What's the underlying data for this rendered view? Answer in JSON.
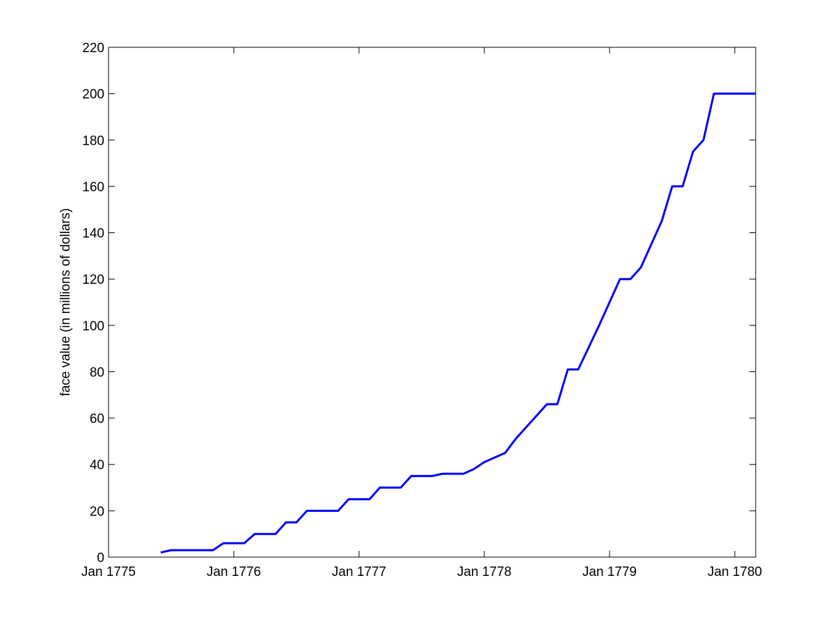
{
  "chart_data": {
    "type": "line",
    "title": "",
    "xlabel": "",
    "ylabel": "face value (in millions of dollars)",
    "x_tick_labels": [
      "Jan 1775",
      "Jan 1776",
      "Jan 1777",
      "Jan 1778",
      "Jan 1779",
      "Jan 1780"
    ],
    "y_tick_labels": [
      "0",
      "20",
      "40",
      "60",
      "80",
      "100",
      "120",
      "140",
      "160",
      "180",
      "200",
      "220"
    ],
    "xlim": [
      "1775-01",
      "1780-03"
    ],
    "ylim": [
      0,
      220
    ],
    "grid": false,
    "legend": "none",
    "series": [
      {
        "color": "#0000ff",
        "points": [
          [
            "1775-06",
            2
          ],
          [
            "1775-07",
            3
          ],
          [
            "1775-11",
            3
          ],
          [
            "1775-12",
            6
          ],
          [
            "1776-02",
            6
          ],
          [
            "1776-03",
            10
          ],
          [
            "1776-05",
            10
          ],
          [
            "1776-06",
            15
          ],
          [
            "1776-07",
            15
          ],
          [
            "1776-08",
            20
          ],
          [
            "1776-11",
            20
          ],
          [
            "1776-12",
            25
          ],
          [
            "1777-02",
            25
          ],
          [
            "1777-03",
            30
          ],
          [
            "1777-05",
            30
          ],
          [
            "1777-06",
            35
          ],
          [
            "1777-08",
            35
          ],
          [
            "1777-09",
            36
          ],
          [
            "1777-11",
            36
          ],
          [
            "1777-12",
            38
          ],
          [
            "1778-01",
            41
          ],
          [
            "1778-03",
            45
          ],
          [
            "1778-04",
            51
          ],
          [
            "1778-05",
            56
          ],
          [
            "1778-07",
            66
          ],
          [
            "1778-08",
            66
          ],
          [
            "1778-09",
            81
          ],
          [
            "1778-10",
            81
          ],
          [
            "1778-12",
            100
          ],
          [
            "1779-02",
            120
          ],
          [
            "1779-03",
            120
          ],
          [
            "1779-04",
            125
          ],
          [
            "1779-06",
            145
          ],
          [
            "1779-07",
            160
          ],
          [
            "1779-08",
            160
          ],
          [
            "1779-09",
            175
          ],
          [
            "1779-10",
            180
          ],
          [
            "1779-11",
            200
          ],
          [
            "1780-03",
            200
          ]
        ]
      }
    ],
    "colors": {
      "line": "#0000ff",
      "axes": "#000000",
      "background": "#ffffff"
    }
  }
}
